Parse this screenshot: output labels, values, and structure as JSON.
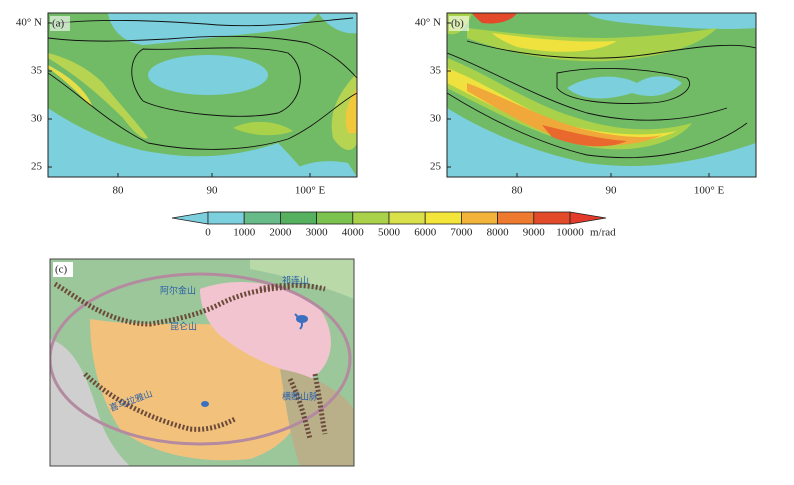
{
  "panels": [
    {
      "label": "(a)",
      "yticks": [
        "40° N",
        35,
        30,
        25
      ],
      "xticks": [
        80,
        90,
        "100° E"
      ]
    },
    {
      "label": "(b)",
      "yticks": [
        "40° N",
        35,
        30,
        25
      ],
      "xticks": [
        80,
        90,
        "100° E"
      ]
    }
  ],
  "colorbar": {
    "ticks": [
      0,
      1000,
      2000,
      3000,
      4000,
      5000,
      6000,
      7000,
      8000,
      9000,
      10000
    ],
    "unit": "m/rad"
  },
  "map": {
    "label": "(c)",
    "labels": [
      "阿尔金山",
      "祁连山",
      "昆仑山",
      "喜马拉雅山",
      "横断山脉"
    ]
  }
}
